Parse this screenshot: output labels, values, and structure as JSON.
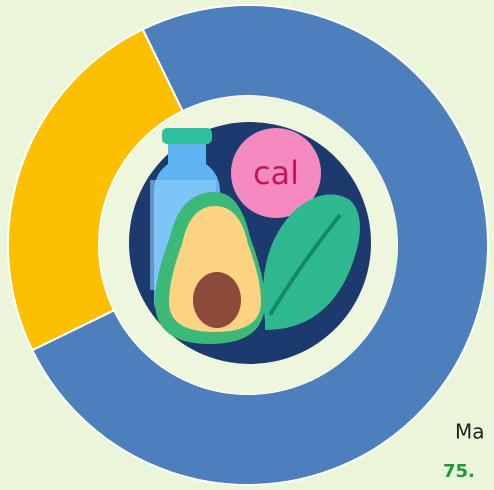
{
  "chart_data": {
    "type": "donut",
    "values": [
      25,
      75
    ],
    "colors": [
      "#fcc000",
      "#4e7fbd"
    ],
    "annotations": [
      "Ma",
      "75."
    ],
    "icon_text": "cal"
  }
}
